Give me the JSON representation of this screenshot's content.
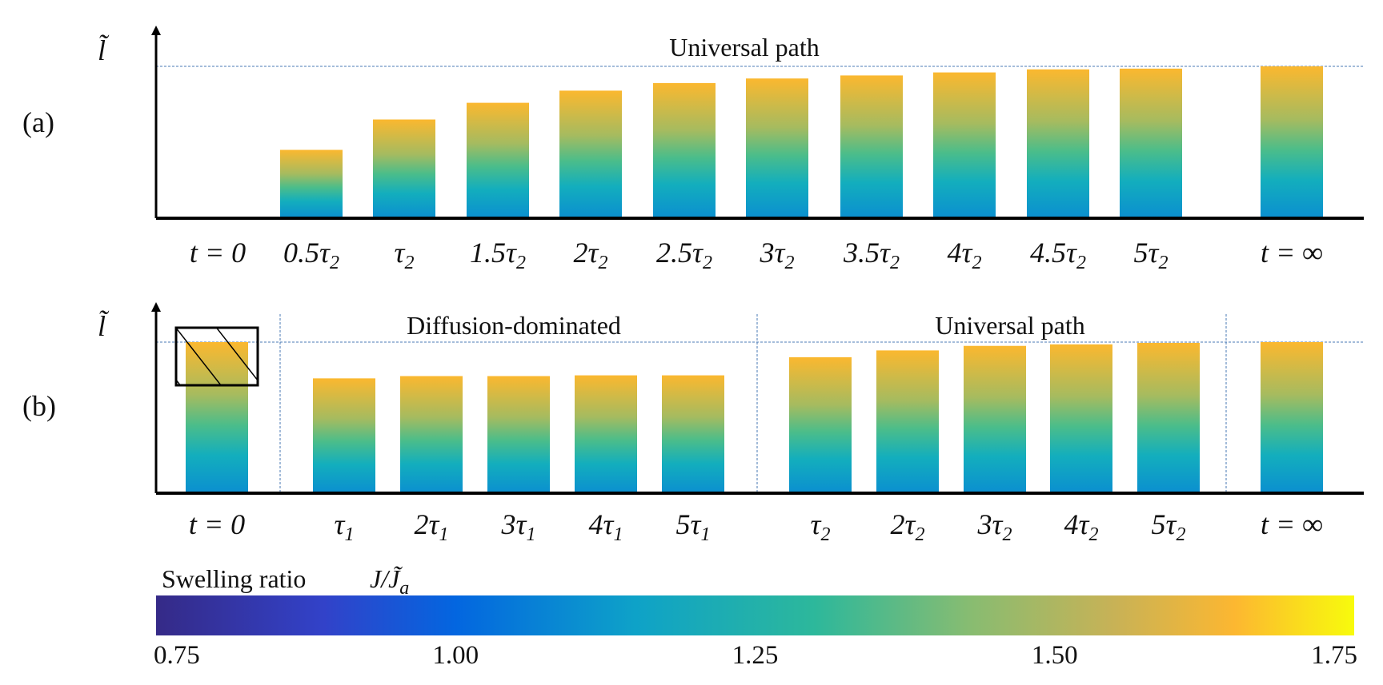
{
  "chart_data": [
    {
      "panel": "(a)",
      "type": "bar",
      "ylabel": "l̃",
      "ylim": [
        0,
        1
      ],
      "reference_level": 1.0,
      "annotations": [
        "Universal path"
      ],
      "categories": [
        {
          "pre": "t = 0",
          "sub": "",
          "post": ""
        },
        {
          "pre": "0.5τ",
          "sub": "2",
          "post": ""
        },
        {
          "pre": "τ",
          "sub": "2",
          "post": ""
        },
        {
          "pre": "1.5τ",
          "sub": "2",
          "post": ""
        },
        {
          "pre": "2τ",
          "sub": "2",
          "post": ""
        },
        {
          "pre": "2.5τ",
          "sub": "2",
          "post": ""
        },
        {
          "pre": "3τ",
          "sub": "2",
          "post": ""
        },
        {
          "pre": "3.5τ",
          "sub": "2",
          "post": ""
        },
        {
          "pre": "4τ",
          "sub": "2",
          "post": ""
        },
        {
          "pre": "4.5τ",
          "sub": "2",
          "post": ""
        },
        {
          "pre": "5τ",
          "sub": "2",
          "post": ""
        },
        {
          "pre": "t = ∞",
          "sub": "",
          "post": ""
        }
      ],
      "values": [
        0,
        0.45,
        0.65,
        0.76,
        0.84,
        0.89,
        0.92,
        0.94,
        0.96,
        0.98,
        0.985,
        1.0
      ]
    },
    {
      "panel": "(b)",
      "type": "bar",
      "ylabel": "l̃",
      "ylim": [
        0,
        1
      ],
      "reference_level": 1.0,
      "annotations": [
        "Diffusion-dominated",
        "Universal path"
      ],
      "categories": [
        {
          "pre": "t = 0",
          "sub": "",
          "post": ""
        },
        {
          "pre": "τ",
          "sub": "1",
          "post": ""
        },
        {
          "pre": "2τ",
          "sub": "1",
          "post": ""
        },
        {
          "pre": "3τ",
          "sub": "1",
          "post": ""
        },
        {
          "pre": "4τ",
          "sub": "1",
          "post": ""
        },
        {
          "pre": "5τ",
          "sub": "1",
          "post": ""
        },
        {
          "pre": "τ",
          "sub": "2",
          "post": ""
        },
        {
          "pre": "2τ",
          "sub": "2",
          "post": ""
        },
        {
          "pre": "3τ",
          "sub": "2",
          "post": ""
        },
        {
          "pre": "4τ",
          "sub": "2",
          "post": ""
        },
        {
          "pre": "5τ",
          "sub": "2",
          "post": ""
        },
        {
          "pre": "t = ∞",
          "sub": "",
          "post": ""
        }
      ],
      "values": [
        1.0,
        0.76,
        0.775,
        0.775,
        0.78,
        0.78,
        0.9,
        0.945,
        0.975,
        0.985,
        0.995,
        1.0
      ]
    }
  ],
  "colorbar": {
    "title": "Swelling ratio",
    "title_math": "J/J̃",
    "title_math_sub": "a",
    "range": [
      0.75,
      1.75
    ],
    "ticks": [
      "0.75",
      "1.00",
      "1.25",
      "1.50",
      "1.75"
    ],
    "tick_values": [
      0.75,
      1.0,
      1.25,
      1.5,
      1.75
    ],
    "colors": [
      "#352a87",
      "#0363e1",
      "#0ea4c6",
      "#31b79a",
      "#8dbc6f",
      "#c7b254",
      "#fbb82f",
      "#f9fb0e"
    ]
  },
  "colors": {
    "bar_top": "#fbb82f",
    "bar_mid": "#6fbe7e",
    "bar_low": "#13aebd",
    "bar_base": "#0b8fd0",
    "reference_line": "#4a7ab5",
    "axis": "#000000"
  }
}
